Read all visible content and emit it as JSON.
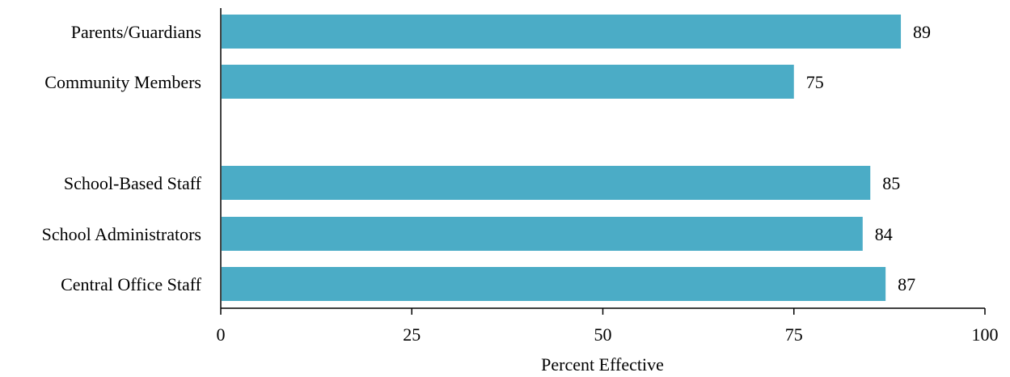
{
  "chart_data": {
    "type": "bar",
    "orientation": "horizontal",
    "categories": [
      "Parents/Guardians",
      "Community Members",
      "",
      "School-Based Staff",
      "School Administrators",
      "Central Office Staff"
    ],
    "values": [
      89,
      75,
      null,
      85,
      84,
      87
    ],
    "xlabel": "Percent Effective",
    "ylabel": "",
    "xlim": [
      0,
      100
    ],
    "xticks": [
      0,
      25,
      50,
      75,
      100
    ],
    "grid": false,
    "bar_color": "#4bacc6"
  }
}
